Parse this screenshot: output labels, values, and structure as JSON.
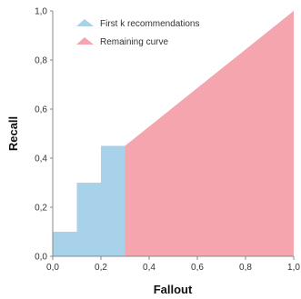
{
  "chart_data": {
    "type": "area",
    "xlabel": "Fallout",
    "ylabel": "Recall",
    "xlim": [
      0,
      1
    ],
    "ylim": [
      0,
      1
    ],
    "x_ticks": [
      "0,0",
      "0,2",
      "0,4",
      "0,6",
      "0,8",
      "1,0"
    ],
    "y_ticks": [
      "0,0",
      "0,2",
      "0,4",
      "0,6",
      "0,8",
      "1,0"
    ],
    "grid": false,
    "legend_position": "top-left",
    "series": [
      {
        "name": "First k recommendations",
        "color": "#a8d1ea",
        "points": [
          {
            "x": 0.0,
            "y": 0.1
          },
          {
            "x": 0.1,
            "y": 0.1
          },
          {
            "x": 0.1,
            "y": 0.3
          },
          {
            "x": 0.2,
            "y": 0.3
          },
          {
            "x": 0.2,
            "y": 0.45
          },
          {
            "x": 0.3,
            "y": 0.45
          }
        ]
      },
      {
        "name": "Remaining curve",
        "color": "#f4a5ae",
        "points": [
          {
            "x": 0.3,
            "y": 0.45
          },
          {
            "x": 1.0,
            "y": 1.0
          }
        ]
      }
    ]
  }
}
